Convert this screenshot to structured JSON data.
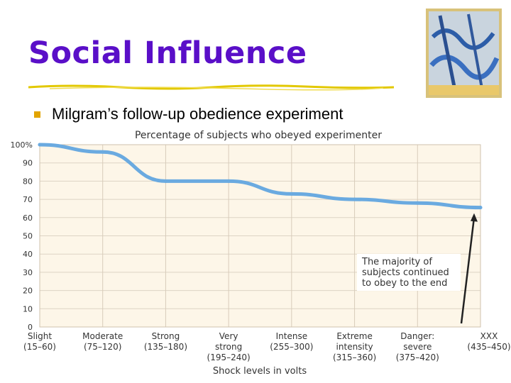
{
  "slide": {
    "title": "Social Influence",
    "bullet": "Milgram’s follow-up obedience experiment"
  },
  "colors": {
    "title": "#5a0fc8",
    "bullet": "#e2a400",
    "rule": "#e2c800",
    "plot_background": "#fdf6e8",
    "line": "#6aaae0"
  },
  "chart_data": {
    "type": "line",
    "title": "Percentage of subjects who obeyed experimenter",
    "xlabel": "Shock levels in volts",
    "ylabel": "",
    "categories": [
      [
        "Slight",
        "(15–60)"
      ],
      [
        "Moderate",
        "(75–120)"
      ],
      [
        "Strong",
        "(135–180)"
      ],
      [
        "Very",
        "strong",
        "(195–240)"
      ],
      [
        "Intense",
        "(255–300)"
      ],
      [
        "Extreme",
        "intensity",
        "(315–360)"
      ],
      [
        "Danger:",
        "severe",
        "(375–420)"
      ],
      [
        "XXX",
        "(435–450)"
      ]
    ],
    "values": [
      100,
      96,
      80,
      80,
      73,
      70,
      68,
      65.5
    ],
    "ylim": [
      0,
      100
    ],
    "yticks": [
      "0",
      "10",
      "20",
      "30",
      "40",
      "50",
      "60",
      "70",
      "80",
      "90",
      "100%"
    ],
    "grid": true,
    "annotation": [
      "The majority of",
      "subjects continued",
      "to obey to the end"
    ]
  }
}
